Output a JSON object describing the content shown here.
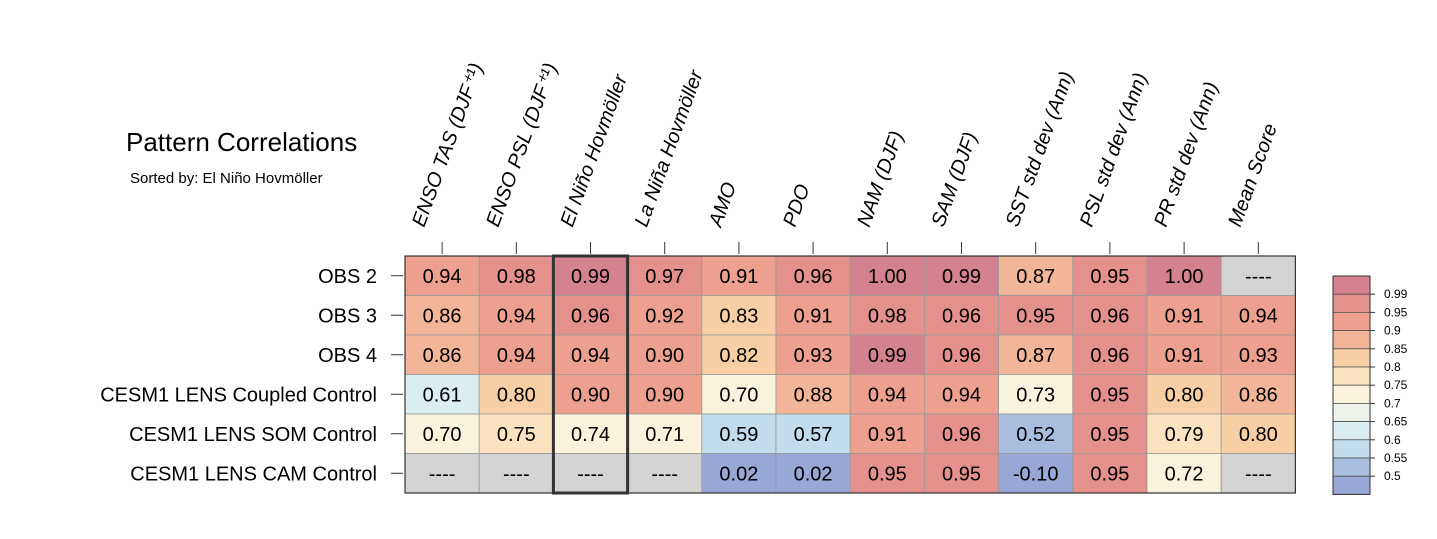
{
  "chart_data": {
    "type": "heatmap",
    "title": "Pattern Correlations",
    "subtitle": "Sorted by: El Niño Hovmöller",
    "highlight_column": 2,
    "columns": [
      "ENSO TAS (DJF⁺¹)",
      "ENSO PSL (DJF⁺¹)",
      "El Niño Hovmöller",
      "La Niña Hovmöller",
      "AMO",
      "PDO",
      "NAM (DJF)",
      "SAM (DJF)",
      "SST std dev (Ann)",
      "PSL std dev (Ann)",
      "PR std dev (Ann)",
      "Mean Score"
    ],
    "rows": [
      "OBS 2",
      "OBS 3",
      "OBS 4",
      "CESM1 LENS Coupled Control",
      "CESM1 LENS SOM Control",
      "CESM1 LENS CAM Control"
    ],
    "values": [
      [
        "0.94",
        "0.98",
        "0.99",
        "0.97",
        "0.91",
        "0.96",
        "1.00",
        "0.99",
        "0.87",
        "0.95",
        "1.00",
        "----"
      ],
      [
        "0.86",
        "0.94",
        "0.96",
        "0.92",
        "0.83",
        "0.91",
        "0.98",
        "0.96",
        "0.95",
        "0.96",
        "0.91",
        "0.94"
      ],
      [
        "0.86",
        "0.94",
        "0.94",
        "0.90",
        "0.82",
        "0.93",
        "0.99",
        "0.96",
        "0.87",
        "0.96",
        "0.91",
        "0.93"
      ],
      [
        "0.61",
        "0.80",
        "0.90",
        "0.90",
        "0.70",
        "0.88",
        "0.94",
        "0.94",
        "0.73",
        "0.95",
        "0.80",
        "0.86"
      ],
      [
        "0.70",
        "0.75",
        "0.74",
        "0.71",
        "0.59",
        "0.57",
        "0.91",
        "0.96",
        "0.52",
        "0.95",
        "0.79",
        "0.80"
      ],
      [
        "----",
        "----",
        "----",
        "----",
        "0.02",
        "0.02",
        "0.95",
        "0.95",
        "-0.10",
        "0.95",
        "0.72",
        "----"
      ]
    ],
    "colorbar": {
      "levels": [
        "0.99",
        "0.95",
        "0.9",
        "0.85",
        "0.8",
        "0.75",
        "0.7",
        "0.65",
        "0.6",
        "0.55",
        "0.5"
      ],
      "colors_top_to_bottom": [
        "#d4828f",
        "#e4908c",
        "#eda08e",
        "#f2b597",
        "#f8cfa5",
        "#fce3bf",
        "#f9f2dd",
        "#eef3e9",
        "#dbedf0",
        "#c3dcec",
        "#a9bedf",
        "#98a7d5"
      ],
      "missing_color": "#d3d3d3"
    }
  }
}
